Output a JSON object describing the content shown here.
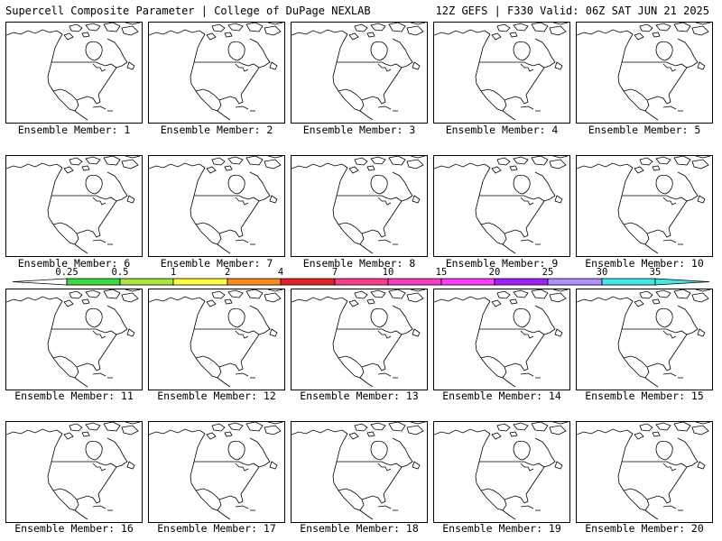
{
  "header": {
    "left": "Supercell Composite Parameter | College of DuPage NEXLAB",
    "right": "12Z GEFS | F330 Valid: 06Z SAT JUN 21 2025"
  },
  "members": [
    {
      "label": "Ensemble Member: 1"
    },
    {
      "label": "Ensemble Member: 2"
    },
    {
      "label": "Ensemble Member: 3"
    },
    {
      "label": "Ensemble Member: 4"
    },
    {
      "label": "Ensemble Member: 5"
    },
    {
      "label": "Ensemble Member: 6"
    },
    {
      "label": "Ensemble Member: 7"
    },
    {
      "label": "Ensemble Member: 8"
    },
    {
      "label": "Ensemble Member: 9"
    },
    {
      "label": "Ensemble Member: 10"
    },
    {
      "label": "Ensemble Member: 11"
    },
    {
      "label": "Ensemble Member: 12"
    },
    {
      "label": "Ensemble Member: 13"
    },
    {
      "label": "Ensemble Member: 14"
    },
    {
      "label": "Ensemble Member: 15"
    },
    {
      "label": "Ensemble Member: 16"
    },
    {
      "label": "Ensemble Member: 17"
    },
    {
      "label": "Ensemble Member: 18"
    },
    {
      "label": "Ensemble Member: 19"
    },
    {
      "label": "Ensemble Member: 20"
    }
  ],
  "colorbar": {
    "ticks": [
      "0.25",
      "0.5",
      "1",
      "2",
      "4",
      "7",
      "10",
      "15",
      "20",
      "25",
      "30",
      "35"
    ],
    "colors": [
      "#ffffff",
      "#3ddc3d",
      "#a8e83c",
      "#ffff3c",
      "#ff8c1a",
      "#e82020",
      "#ff3c8c",
      "#ff3cc8",
      "#ff3cff",
      "#a020ff",
      "#b090ff",
      "#40e8e8"
    ]
  }
}
